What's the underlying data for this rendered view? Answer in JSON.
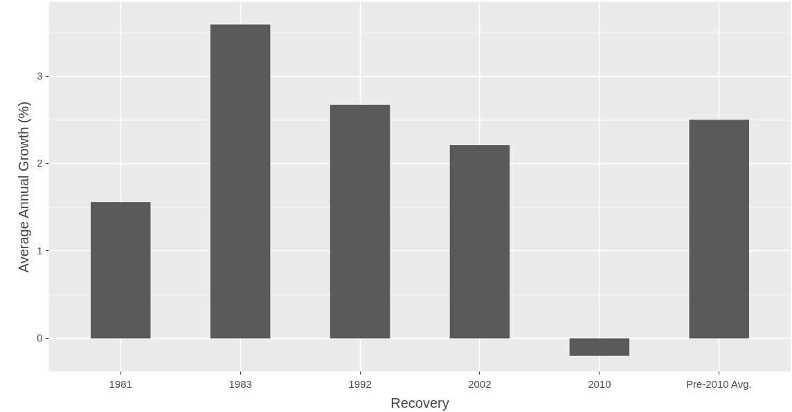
{
  "chart_data": {
    "type": "bar",
    "xlabel": "Recovery",
    "ylabel": "Average Annual Growth (%)",
    "categories": [
      "1981",
      "1983",
      "1992",
      "2002",
      "2010",
      "Pre-2010 Avg."
    ],
    "values": [
      1.56,
      3.59,
      2.67,
      2.21,
      -0.2,
      2.5
    ],
    "color": "#595959",
    "ylim": [
      -0.38,
      3.85
    ],
    "yticks": [
      0,
      1,
      2,
      3
    ],
    "grid": true
  }
}
